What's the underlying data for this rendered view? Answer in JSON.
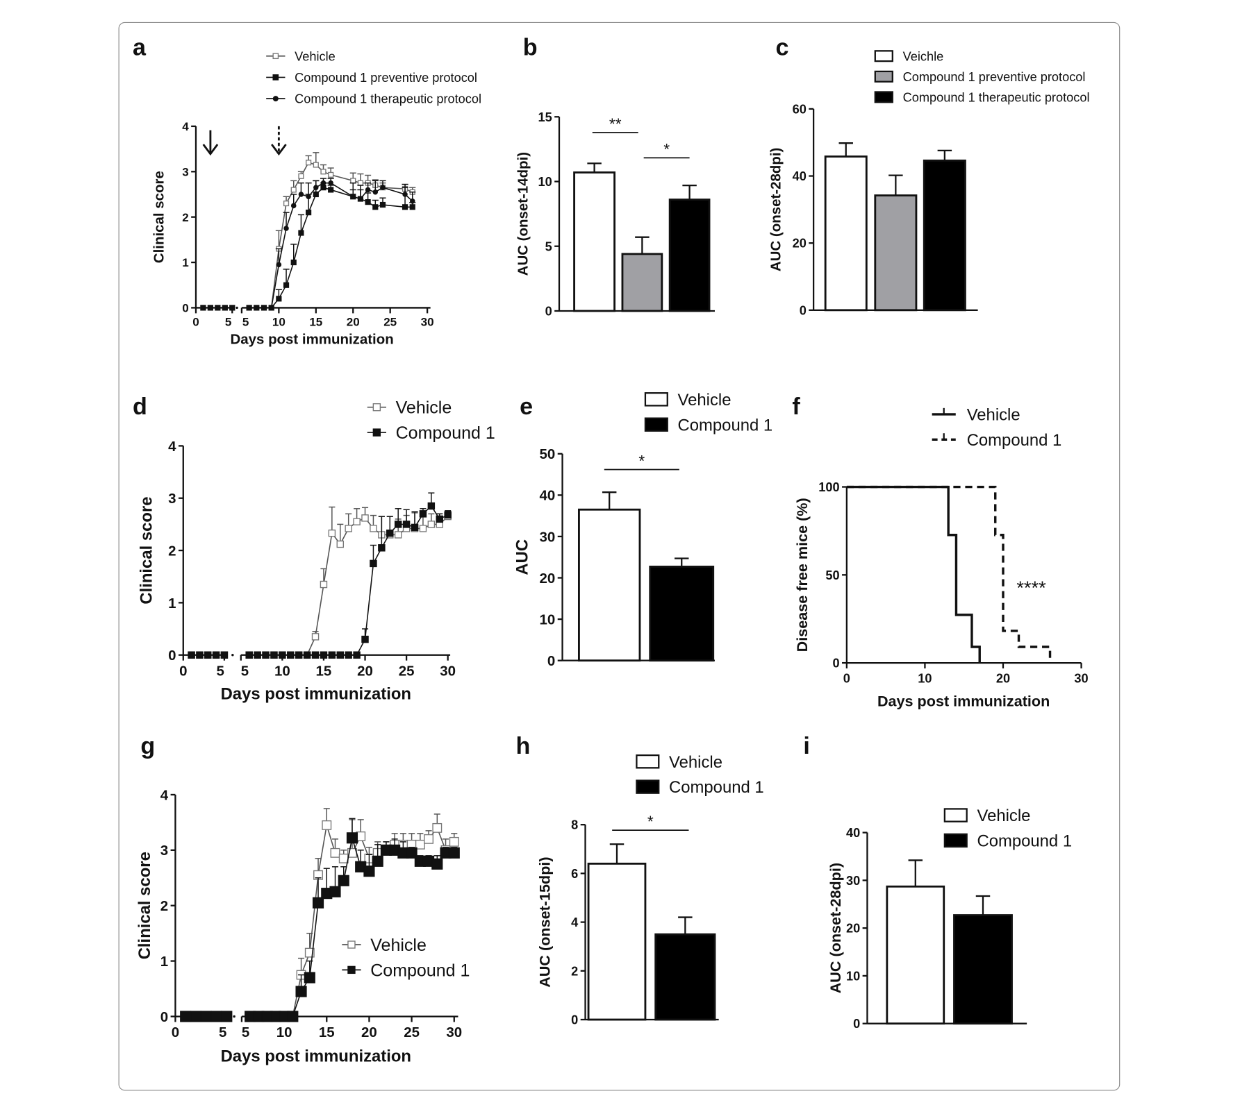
{
  "chart_data": [
    {
      "panel": "a",
      "type": "line",
      "xlabel": "Days post immunization",
      "ylabel": "Clinical score",
      "x_tick_labels": [
        "0",
        "5",
        "5",
        "10",
        "15",
        "20",
        "25",
        "30"
      ],
      "x_axis_break": true,
      "ylim": [
        0,
        4
      ],
      "y_ticks": [
        0,
        1,
        2,
        3,
        4
      ],
      "annotations": [
        {
          "type": "arrow",
          "x": 2,
          "style": "solid"
        },
        {
          "type": "arrow",
          "x": 10,
          "style": "dotted"
        }
      ],
      "series": [
        {
          "name": "Vehicle",
          "marker": "open-square",
          "x": [
            1,
            2,
            3,
            4,
            5,
            6,
            7,
            8,
            9,
            10,
            11,
            12,
            13,
            14,
            15,
            16,
            17,
            20,
            21,
            22,
            23,
            24,
            27,
            28
          ],
          "y": [
            0,
            0,
            0,
            0,
            0,
            0,
            0,
            0,
            0,
            1.3,
            2.3,
            2.6,
            2.9,
            3.2,
            3.15,
            3.0,
            2.93,
            2.8,
            2.75,
            2.75,
            2.7,
            2.65,
            2.62,
            2.55
          ],
          "err": [
            0,
            0,
            0,
            0,
            0,
            0,
            0,
            0,
            0,
            0.4,
            0.15,
            0.2,
            0.1,
            0.15,
            0.27,
            0.15,
            0.15,
            0.17,
            0.2,
            0.17,
            0.12,
            0.1,
            0.1,
            0.1
          ]
        },
        {
          "name": "Compound 1 preventive protocol",
          "marker": "filled-square",
          "x": [
            1,
            2,
            3,
            4,
            5,
            6,
            7,
            8,
            9,
            10,
            11,
            12,
            13,
            14,
            15,
            16,
            17,
            20,
            21,
            22,
            23,
            24,
            27,
            28
          ],
          "y": [
            0,
            0,
            0,
            0,
            0,
            0,
            0,
            0,
            0,
            0.2,
            0.5,
            1.0,
            1.65,
            2.1,
            2.5,
            2.65,
            2.6,
            2.45,
            2.4,
            2.33,
            2.22,
            2.27,
            2.22,
            2.22
          ],
          "err": [
            0,
            0,
            0,
            0,
            0,
            0,
            0,
            0,
            0,
            0.2,
            0.35,
            0.4,
            0.4,
            0.4,
            0.3,
            0.1,
            0.1,
            0.15,
            0.2,
            0.2,
            0.15,
            0.15,
            0.5,
            0.1
          ]
        },
        {
          "name": "Compound 1 therapeutic protocol",
          "marker": "filled-circle",
          "x": [
            1,
            2,
            3,
            4,
            5,
            6,
            7,
            8,
            9,
            10,
            11,
            12,
            13,
            14,
            15,
            16,
            17,
            20,
            21,
            22,
            23,
            24,
            27,
            28
          ],
          "y": [
            0,
            0,
            0,
            0,
            0,
            0,
            0,
            0,
            0,
            0.95,
            1.75,
            2.25,
            2.5,
            2.45,
            2.65,
            2.75,
            2.75,
            2.45,
            2.4,
            2.6,
            2.55,
            2.65,
            2.5,
            2.35
          ],
          "err": [
            0,
            0,
            0,
            0,
            0,
            0,
            0,
            0,
            0,
            0.35,
            0.35,
            0.25,
            0.25,
            0.3,
            0.15,
            0.1,
            0.1,
            0.3,
            0.3,
            0.15,
            0.25,
            0.15,
            0.15,
            0.2
          ]
        }
      ]
    },
    {
      "panel": "b",
      "type": "bar",
      "ylabel": "AUC (onset-14dpi)",
      "ylim": [
        0,
        15
      ],
      "y_ticks": [
        0,
        5,
        10,
        15
      ],
      "categories": [
        "Vehicle",
        "Compound 1 preventive protocol",
        "Compound 1 therapeutic protocol"
      ],
      "values": [
        10.7,
        4.4,
        8.6
      ],
      "errors": [
        0.7,
        1.3,
        1.1
      ],
      "colors": [
        "#ffffff",
        "#a0a0a4",
        "#000000"
      ],
      "significance": [
        {
          "from": 0,
          "to": 1,
          "label": "**"
        },
        {
          "from": 1,
          "to": 2,
          "label": "*"
        }
      ]
    },
    {
      "panel": "c",
      "type": "bar",
      "ylabel": "AUC (onset-28dpi)",
      "ylim": [
        0,
        60
      ],
      "y_ticks": [
        0,
        20,
        40,
        60
      ],
      "categories": [
        "Veichle",
        "Compound 1 preventive protocol",
        "Compound 1 therapeutic protocol"
      ],
      "legend": [
        "Veichle",
        "Compound 1 preventive protocol",
        "Compound 1 therapeutic protocol"
      ],
      "values": [
        45.8,
        34.2,
        44.6
      ],
      "errors": [
        4.0,
        6.0,
        3.0
      ],
      "colors": [
        "#ffffff",
        "#a0a0a4",
        "#000000"
      ],
      "significance": []
    },
    {
      "panel": "d",
      "type": "line",
      "xlabel": "Days post immunization",
      "ylabel": "Clinical score",
      "x_tick_labels": [
        "0",
        "5",
        "5",
        "10",
        "15",
        "20",
        "25",
        "30"
      ],
      "x_axis_break": true,
      "ylim": [
        0,
        4
      ],
      "y_ticks": [
        0,
        1,
        2,
        3,
        4
      ],
      "series": [
        {
          "name": "Vehicle",
          "marker": "open-square",
          "x": [
            1,
            2,
            3,
            4,
            5,
            6,
            7,
            8,
            9,
            10,
            11,
            12,
            13,
            14,
            15,
            16,
            17,
            18,
            19,
            20,
            21,
            22,
            23,
            24,
            25,
            26,
            27,
            28,
            29,
            30
          ],
          "y": [
            0,
            0,
            0,
            0,
            0,
            0,
            0,
            0,
            0,
            0,
            0,
            0,
            0,
            0.35,
            1.35,
            2.33,
            2.12,
            2.42,
            2.55,
            2.62,
            2.42,
            2.3,
            2.3,
            2.3,
            2.42,
            2.42,
            2.42,
            2.5,
            2.5,
            2.65
          ],
          "err": [
            0,
            0,
            0,
            0,
            0,
            0,
            0,
            0,
            0,
            0,
            0,
            0,
            0,
            0.1,
            0.3,
            0.5,
            0.38,
            0.28,
            0.25,
            0.2,
            0.25,
            0.35,
            0.35,
            0.3,
            0.25,
            0.3,
            0.3,
            0.2,
            0.2,
            0.1
          ]
        },
        {
          "name": "Compound 1",
          "marker": "filled-square",
          "x": [
            1,
            2,
            3,
            4,
            5,
            6,
            7,
            8,
            9,
            10,
            11,
            12,
            13,
            14,
            15,
            16,
            17,
            18,
            19,
            20,
            21,
            22,
            23,
            24,
            25,
            26,
            27,
            28,
            29,
            30
          ],
          "y": [
            0,
            0,
            0,
            0,
            0,
            0,
            0,
            0,
            0,
            0,
            0,
            0,
            0,
            0,
            0,
            0,
            0,
            0,
            0,
            0.3,
            1.75,
            2.05,
            2.33,
            2.5,
            2.5,
            2.44,
            2.7,
            2.85,
            2.6,
            2.68
          ],
          "err": [
            0,
            0,
            0,
            0,
            0,
            0,
            0,
            0,
            0,
            0,
            0,
            0,
            0,
            0,
            0,
            0,
            0,
            0,
            0,
            0.2,
            0.35,
            0.6,
            0.32,
            0.3,
            0.28,
            0.3,
            0.1,
            0.25,
            0.1,
            0.08
          ]
        }
      ]
    },
    {
      "panel": "e",
      "type": "bar",
      "ylabel": "AUC",
      "ylim": [
        0,
        50
      ],
      "y_ticks": [
        0,
        10,
        20,
        30,
        40,
        50
      ],
      "categories": [
        "Vehicle",
        "Compound 1"
      ],
      "legend": [
        "Vehicle",
        "Compound 1"
      ],
      "values": [
        36.5,
        22.7
      ],
      "errors": [
        4.2,
        2.0
      ],
      "colors": [
        "#ffffff",
        "#000000"
      ],
      "significance": [
        {
          "from": 0,
          "to": 1,
          "label": "*"
        }
      ]
    },
    {
      "panel": "f",
      "type": "line",
      "subtype": "survival-step",
      "xlabel": "Days post immunization",
      "ylabel": "Disease free mice (%)",
      "xlim": [
        0,
        30
      ],
      "x_ticks": [
        0,
        10,
        20,
        30
      ],
      "ylim": [
        0,
        100
      ],
      "y_ticks": [
        0,
        50,
        100
      ],
      "annotation": "****",
      "series": [
        {
          "name": "Vehicle",
          "style": "solid",
          "x": [
            0,
            13,
            14,
            16,
            17
          ],
          "y": [
            100,
            72.7,
            27.3,
            9.1,
            0
          ]
        },
        {
          "name": "Compound 1",
          "style": "dashed",
          "x": [
            0,
            19,
            20,
            22,
            26
          ],
          "y": [
            100,
            72.7,
            18.2,
            9.1,
            0
          ]
        }
      ]
    },
    {
      "panel": "g",
      "type": "line",
      "xlabel": "Days post immunization",
      "ylabel": "Clinical score",
      "x_tick_labels": [
        "0",
        "5",
        "5",
        "10",
        "15",
        "20",
        "25",
        "30"
      ],
      "x_axis_break": true,
      "ylim": [
        0,
        4
      ],
      "y_ticks": [
        0,
        1,
        2,
        3,
        4
      ],
      "series": [
        {
          "name": "Vehicle",
          "marker": "open-square",
          "x": [
            1,
            2,
            3,
            4,
            5,
            6,
            7,
            8,
            9,
            10,
            11,
            12,
            13,
            14,
            15,
            16,
            17,
            18,
            19,
            20,
            21,
            22,
            23,
            24,
            25,
            26,
            27,
            28,
            29,
            30
          ],
          "y": [
            0,
            0,
            0,
            0,
            0,
            0,
            0,
            0,
            0,
            0,
            0,
            0.75,
            1.15,
            2.55,
            3.45,
            2.95,
            2.85,
            2.95,
            3.25,
            2.85,
            2.95,
            3.0,
            3.1,
            3.1,
            3.1,
            3.1,
            3.2,
            3.4,
            3.0,
            3.15
          ],
          "err": [
            0,
            0,
            0,
            0,
            0,
            0,
            0,
            0,
            0,
            0,
            0,
            0.3,
            0.35,
            0.3,
            0.3,
            0.25,
            0.15,
            0.6,
            0.3,
            0.2,
            0.2,
            0.15,
            0.2,
            0.2,
            0.2,
            0.2,
            0.15,
            0.25,
            0.2,
            0.15
          ]
        },
        {
          "name": "Compound 1",
          "marker": "filled-square",
          "x": [
            1,
            2,
            3,
            4,
            5,
            6,
            7,
            8,
            9,
            10,
            11,
            12,
            13,
            14,
            15,
            16,
            17,
            18,
            19,
            20,
            21,
            22,
            23,
            24,
            25,
            26,
            27,
            28,
            29,
            30
          ],
          "y": [
            0,
            0,
            0,
            0,
            0,
            0,
            0,
            0,
            0,
            0,
            0,
            0.45,
            0.7,
            2.05,
            2.22,
            2.25,
            2.45,
            3.22,
            2.7,
            2.62,
            2.8,
            3.0,
            3.0,
            2.95,
            2.95,
            2.8,
            2.8,
            2.75,
            2.95,
            2.95
          ],
          "err": [
            0,
            0,
            0,
            0,
            0,
            0,
            0,
            0,
            0,
            0,
            0,
            0.3,
            0.3,
            0.45,
            0.45,
            0.45,
            0.25,
            0.35,
            0.3,
            0.3,
            0.3,
            0.15,
            0.2,
            0.2,
            0.1,
            0.1,
            0.1,
            0.15,
            0.1,
            0.1
          ]
        }
      ]
    },
    {
      "panel": "h",
      "type": "bar",
      "ylabel": "AUC (onset-15dpi)",
      "ylim": [
        0,
        8
      ],
      "y_ticks": [
        0,
        2,
        4,
        6,
        8
      ],
      "categories": [
        "Vehicle",
        "Compound 1"
      ],
      "legend": [
        "Vehicle",
        "Compound 1"
      ],
      "values": [
        6.4,
        3.5
      ],
      "errors": [
        0.8,
        0.7
      ],
      "colors": [
        "#ffffff",
        "#000000"
      ],
      "significance": [
        {
          "from": 0,
          "to": 1,
          "label": "*"
        }
      ]
    },
    {
      "panel": "i",
      "type": "bar",
      "ylabel": "AUC (onset-28dpi)",
      "ylim": [
        0,
        40
      ],
      "y_ticks": [
        0,
        10,
        20,
        30,
        40
      ],
      "categories": [
        "Vehicle",
        "Compound 1"
      ],
      "legend": [
        "Vehicle",
        "Compound 1"
      ],
      "values": [
        28.7,
        22.7
      ],
      "errors": [
        5.5,
        4.0
      ],
      "colors": [
        "#ffffff",
        "#000000"
      ],
      "significance": []
    }
  ]
}
